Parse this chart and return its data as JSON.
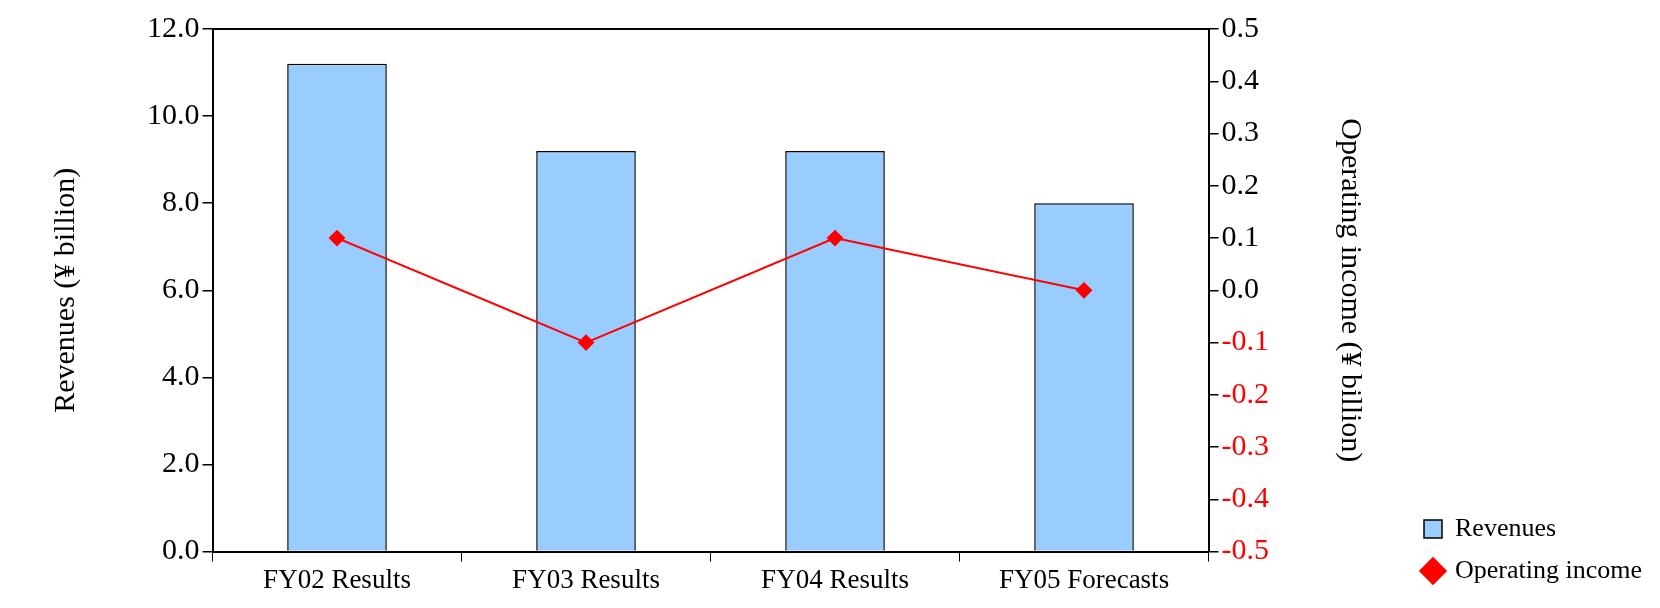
{
  "chart_data": {
    "type": "bar",
    "categories": [
      "FY02 Results",
      "FY03 Results",
      "FY04 Results",
      "FY05 Forecasts"
    ],
    "ylabel": "Revenues (¥ billion)",
    "y2label": "Operating income (¥ billion)",
    "series": [
      {
        "name": "Revenues",
        "color": "#99ccff",
        "values": [
          11.2,
          9.2,
          9.2,
          8.0
        ]
      },
      {
        "name": "Operating income",
        "type": "line",
        "axis": "y2",
        "color": "#ff0000",
        "marker": "diamond",
        "values": [
          0.1,
          -0.1,
          0.1,
          0.0
        ]
      }
    ],
    "ylim": [
      0,
      12
    ],
    "yticks": [
      {
        "value": 0,
        "label": "0.0"
      },
      {
        "value": 2,
        "label": "2.0"
      },
      {
        "value": 4,
        "label": "4.0"
      },
      {
        "value": 6,
        "label": "6.0"
      },
      {
        "value": 8,
        "label": "8.0"
      },
      {
        "value": 10,
        "label": "10.0"
      },
      {
        "value": 12,
        "label": "12.0"
      }
    ],
    "y2lim": [
      -0.5,
      0.5
    ],
    "y2ticks": [
      -0.5,
      -0.4,
      -0.3,
      -0.2,
      -0.1,
      {
        "value": 0,
        "label": "0.0"
      },
      0.1,
      0.2,
      0.3,
      0.4,
      0.5
    ],
    "legend": "bottom right"
  }
}
